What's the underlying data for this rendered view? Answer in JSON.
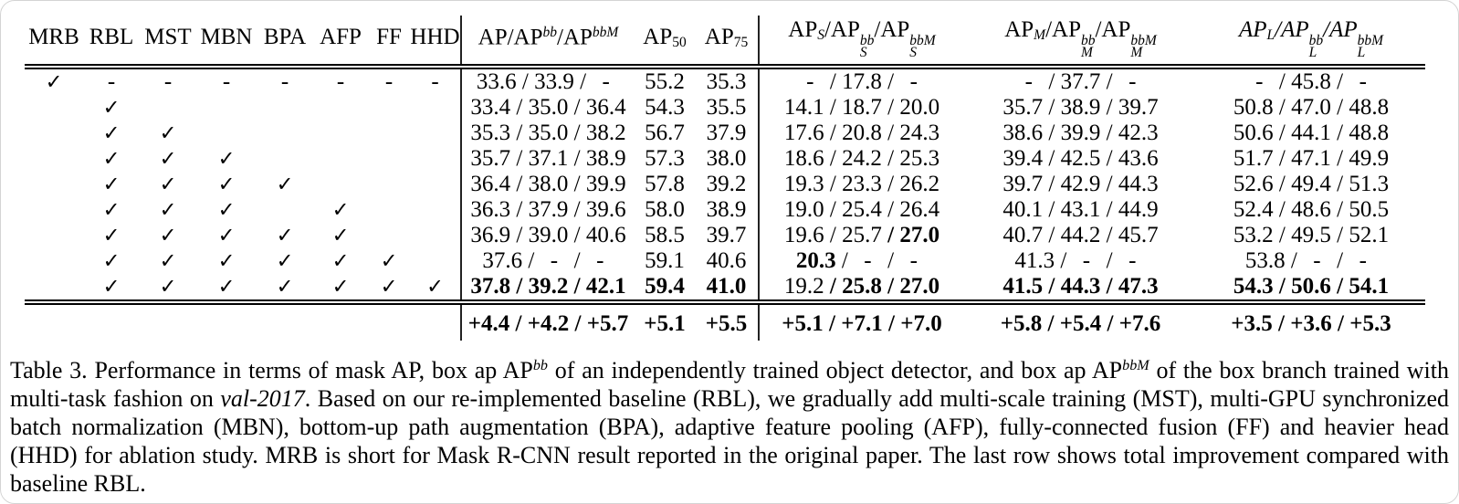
{
  "table": {
    "check_columns": [
      "MRB",
      "RBL",
      "MST",
      "MBN",
      "BPA",
      "AFP",
      "FF",
      "HHD"
    ],
    "metric_columns": [
      {
        "id": "ap",
        "sep": true,
        "italic": false,
        "segments": [
          {
            "t": "AP/AP"
          },
          {
            "sup": "bb"
          },
          {
            "t": "/AP"
          },
          {
            "sup": "bbM"
          }
        ]
      },
      {
        "id": "ap50",
        "sep": false,
        "italic": false,
        "segments": [
          {
            "t": "AP"
          },
          {
            "sub": "50"
          }
        ]
      },
      {
        "id": "ap75",
        "sep": false,
        "italic": false,
        "segments": [
          {
            "t": "AP"
          },
          {
            "sub": "75"
          }
        ]
      },
      {
        "id": "aps",
        "sep": true,
        "italic": false,
        "segments": [
          {
            "t": "AP"
          },
          {
            "sub": "S"
          },
          {
            "t": "/AP"
          },
          {
            "stack": [
              "bb",
              "S"
            ]
          },
          {
            "t": "/AP"
          },
          {
            "stack": [
              "bbM",
              "S"
            ]
          }
        ]
      },
      {
        "id": "apm",
        "sep": false,
        "italic": false,
        "segments": [
          {
            "t": "AP"
          },
          {
            "sub": "M"
          },
          {
            "t": "/AP"
          },
          {
            "stack": [
              "bb",
              "M"
            ]
          },
          {
            "t": "/AP"
          },
          {
            "stack": [
              "bbM",
              "M"
            ]
          }
        ]
      },
      {
        "id": "apl",
        "sep": false,
        "italic": true,
        "segments": [
          {
            "t": "AP"
          },
          {
            "sub": "L"
          },
          {
            "t": "/AP"
          },
          {
            "stack": [
              "bb",
              "L"
            ]
          },
          {
            "t": "/AP"
          },
          {
            "stack": [
              "bbM",
              "L"
            ]
          }
        ]
      }
    ],
    "rows": [
      {
        "checks": [
          "c",
          "d",
          "d",
          "d",
          "d",
          "d",
          "d",
          "d"
        ],
        "cells": {
          "ap": [
            {
              "v": "33.6"
            },
            {
              "v": "33.9"
            },
            {
              "v": "-"
            }
          ],
          "ap50": [
            {
              "v": "55.2"
            }
          ],
          "ap75": [
            {
              "v": "35.3"
            }
          ],
          "aps": [
            {
              "v": "-"
            },
            {
              "v": "17.8"
            },
            {
              "v": "-"
            }
          ],
          "apm": [
            {
              "v": "-"
            },
            {
              "v": "37.7"
            },
            {
              "v": "-"
            }
          ],
          "apl": [
            {
              "v": "-"
            },
            {
              "v": "45.8"
            },
            {
              "v": "-"
            }
          ]
        }
      },
      {
        "checks": [
          "",
          "c",
          "",
          "",
          "",
          "",
          "",
          ""
        ],
        "cells": {
          "ap": [
            {
              "v": "33.4"
            },
            {
              "v": "35.0"
            },
            {
              "v": "36.4"
            }
          ],
          "ap50": [
            {
              "v": "54.3"
            }
          ],
          "ap75": [
            {
              "v": "35.5"
            }
          ],
          "aps": [
            {
              "v": "14.1"
            },
            {
              "v": "18.7"
            },
            {
              "v": "20.0"
            }
          ],
          "apm": [
            {
              "v": "35.7"
            },
            {
              "v": "38.9"
            },
            {
              "v": "39.7"
            }
          ],
          "apl": [
            {
              "v": "50.8"
            },
            {
              "v": "47.0"
            },
            {
              "v": "48.8"
            }
          ]
        }
      },
      {
        "checks": [
          "",
          "c",
          "c",
          "",
          "",
          "",
          "",
          ""
        ],
        "cells": {
          "ap": [
            {
              "v": "35.3"
            },
            {
              "v": "35.0"
            },
            {
              "v": "38.2"
            }
          ],
          "ap50": [
            {
              "v": "56.7"
            }
          ],
          "ap75": [
            {
              "v": "37.9"
            }
          ],
          "aps": [
            {
              "v": "17.6"
            },
            {
              "v": "20.8"
            },
            {
              "v": "24.3"
            }
          ],
          "apm": [
            {
              "v": "38.6"
            },
            {
              "v": "39.9"
            },
            {
              "v": "42.3"
            }
          ],
          "apl": [
            {
              "v": "50.6"
            },
            {
              "v": "44.1"
            },
            {
              "v": "48.8"
            }
          ]
        }
      },
      {
        "checks": [
          "",
          "c",
          "c",
          "c",
          "",
          "",
          "",
          ""
        ],
        "cells": {
          "ap": [
            {
              "v": "35.7"
            },
            {
              "v": "37.1"
            },
            {
              "v": "38.9"
            }
          ],
          "ap50": [
            {
              "v": "57.3"
            }
          ],
          "ap75": [
            {
              "v": "38.0"
            }
          ],
          "aps": [
            {
              "v": "18.6"
            },
            {
              "v": "24.2"
            },
            {
              "v": "25.3"
            }
          ],
          "apm": [
            {
              "v": "39.4"
            },
            {
              "v": "42.5"
            },
            {
              "v": "43.6"
            }
          ],
          "apl": [
            {
              "v": "51.7"
            },
            {
              "v": "47.1"
            },
            {
              "v": "49.9"
            }
          ]
        }
      },
      {
        "checks": [
          "",
          "c",
          "c",
          "c",
          "c",
          "",
          "",
          ""
        ],
        "cells": {
          "ap": [
            {
              "v": "36.4"
            },
            {
              "v": "38.0"
            },
            {
              "v": "39.9"
            }
          ],
          "ap50": [
            {
              "v": "57.8"
            }
          ],
          "ap75": [
            {
              "v": "39.2"
            }
          ],
          "aps": [
            {
              "v": "19.3"
            },
            {
              "v": "23.3"
            },
            {
              "v": "26.2"
            }
          ],
          "apm": [
            {
              "v": "39.7"
            },
            {
              "v": "42.9"
            },
            {
              "v": "44.3"
            }
          ],
          "apl": [
            {
              "v": "52.6"
            },
            {
              "v": "49.4"
            },
            {
              "v": "51.3"
            }
          ]
        }
      },
      {
        "checks": [
          "",
          "c",
          "c",
          "c",
          "",
          "c",
          "",
          ""
        ],
        "cells": {
          "ap": [
            {
              "v": "36.3"
            },
            {
              "v": "37.9"
            },
            {
              "v": "39.6"
            }
          ],
          "ap50": [
            {
              "v": "58.0"
            }
          ],
          "ap75": [
            {
              "v": "38.9"
            }
          ],
          "aps": [
            {
              "v": "19.0"
            },
            {
              "v": "25.4"
            },
            {
              "v": "26.4"
            }
          ],
          "apm": [
            {
              "v": "40.1"
            },
            {
              "v": "43.1"
            },
            {
              "v": "44.9"
            }
          ],
          "apl": [
            {
              "v": "52.4"
            },
            {
              "v": "48.6"
            },
            {
              "v": "50.5"
            }
          ]
        }
      },
      {
        "checks": [
          "",
          "c",
          "c",
          "c",
          "c",
          "c",
          "",
          ""
        ],
        "cells": {
          "ap": [
            {
              "v": "36.9"
            },
            {
              "v": "39.0"
            },
            {
              "v": "40.6"
            }
          ],
          "ap50": [
            {
              "v": "58.5"
            }
          ],
          "ap75": [
            {
              "v": "39.7"
            }
          ],
          "aps": [
            {
              "v": "19.6"
            },
            {
              "v": "25.7"
            },
            {
              "v": "27.0",
              "b": true
            }
          ],
          "apm": [
            {
              "v": "40.7"
            },
            {
              "v": "44.2"
            },
            {
              "v": "45.7"
            }
          ],
          "apl": [
            {
              "v": "53.2"
            },
            {
              "v": "49.5"
            },
            {
              "v": "52.1"
            }
          ]
        }
      },
      {
        "checks": [
          "",
          "c",
          "c",
          "c",
          "c",
          "c",
          "c",
          ""
        ],
        "cells": {
          "ap": [
            {
              "v": "37.6"
            },
            {
              "v": "-"
            },
            {
              "v": "-"
            }
          ],
          "ap50": [
            {
              "v": "59.1"
            }
          ],
          "ap75": [
            {
              "v": "40.6"
            }
          ],
          "aps": [
            {
              "v": "20.3",
              "b": true
            },
            {
              "v": "-"
            },
            {
              "v": "-"
            }
          ],
          "apm": [
            {
              "v": "41.3"
            },
            {
              "v": "-"
            },
            {
              "v": "-"
            }
          ],
          "apl": [
            {
              "v": "53.8"
            },
            {
              "v": "-"
            },
            {
              "v": "-"
            }
          ]
        }
      },
      {
        "checks": [
          "",
          "c",
          "c",
          "c",
          "c",
          "c",
          "c",
          "c"
        ],
        "cells": {
          "ap": [
            {
              "v": "37.8",
              "b": true
            },
            {
              "v": "39.2",
              "b": true
            },
            {
              "v": "42.1",
              "b": true
            }
          ],
          "ap50": [
            {
              "v": "59.4",
              "b": true
            }
          ],
          "ap75": [
            {
              "v": "41.0",
              "b": true
            }
          ],
          "aps": [
            {
              "v": "19.2"
            },
            {
              "v": "25.8",
              "b": true
            },
            {
              "v": "27.0",
              "b": true
            }
          ],
          "apm": [
            {
              "v": "41.5",
              "b": true
            },
            {
              "v": "44.3",
              "b": true
            },
            {
              "v": "47.3",
              "b": true
            }
          ],
          "apl": [
            {
              "v": "54.3",
              "b": true
            },
            {
              "v": "50.6",
              "b": true
            },
            {
              "v": "54.1",
              "b": true
            }
          ]
        }
      }
    ],
    "summary_row": {
      "cells": {
        "ap": [
          {
            "v": "+4.4",
            "b": true
          },
          {
            "v": "+4.2",
            "b": true
          },
          {
            "v": "+5.7",
            "b": true
          }
        ],
        "ap50": [
          {
            "v": "+5.1",
            "b": true
          }
        ],
        "ap75": [
          {
            "v": "+5.5",
            "b": true
          }
        ],
        "aps": [
          {
            "v": "+5.1",
            "b": true
          },
          {
            "v": "+7.1",
            "b": true
          },
          {
            "v": "+7.0",
            "b": true
          }
        ],
        "apm": [
          {
            "v": "+5.8",
            "b": true
          },
          {
            "v": "+5.4",
            "b": true
          },
          {
            "v": "+7.6",
            "b": true
          }
        ],
        "apl": [
          {
            "v": "+3.5",
            "b": true
          },
          {
            "v": "+3.6",
            "b": true
          },
          {
            "v": "+5.3",
            "b": true
          }
        ]
      }
    },
    "check_glyph": "✓",
    "dash_glyph": "-"
  },
  "caption": {
    "segments": [
      {
        "t": "Table 3. Performance in terms of mask AP, box ap AP"
      },
      {
        "sup": "bb"
      },
      {
        "t": " of an independently trained object detector, and box ap AP"
      },
      {
        "sup": "bbM"
      },
      {
        "t": " of the box branch trained with multi-task fashion on "
      },
      {
        "i": "val-2017"
      },
      {
        "t": ". Based on our re-implemented baseline (RBL), we gradually add multi-scale training (MST), multi-GPU synchronized batch normalization (MBN), bottom-up path augmentation (BPA), adaptive feature pooling (AFP), fully-connected fusion (FF) and heavier head (HHD) for ablation study. MRB is short for Mask R-CNN result reported in the original paper. The last row shows total improvement compared with baseline RBL."
      }
    ]
  }
}
